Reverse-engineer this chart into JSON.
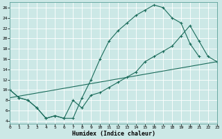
{
  "title": "",
  "xlabel": "Humidex (Indice chaleur)",
  "bg_color": "#cce8e6",
  "grid_color": "#b0d8d5",
  "line_color": "#1a6b5a",
  "xlim": [
    0,
    23
  ],
  "ylim": [
    3.5,
    27
  ],
  "yticks": [
    4,
    6,
    8,
    10,
    12,
    14,
    16,
    18,
    20,
    22,
    24,
    26
  ],
  "xticks": [
    0,
    1,
    2,
    3,
    4,
    5,
    6,
    7,
    8,
    9,
    10,
    11,
    12,
    13,
    14,
    15,
    16,
    17,
    18,
    19,
    20,
    21,
    22,
    23
  ],
  "curve1_x": [
    0,
    1,
    2,
    3,
    4,
    5,
    6,
    7,
    8,
    9,
    10,
    11,
    12,
    13,
    14,
    15,
    16,
    17,
    18,
    19,
    20,
    21
  ],
  "curve1_y": [
    10,
    8.5,
    8,
    6.5,
    4.5,
    5,
    4.5,
    4.5,
    8.5,
    12,
    16,
    19.5,
    21.5,
    23,
    24.5,
    25.5,
    26.5,
    26,
    24,
    23,
    19,
    16.5
  ],
  "curve2_x": [
    0,
    1,
    2,
    3,
    4,
    5,
    6,
    7,
    8,
    9,
    10,
    11,
    12,
    13,
    14,
    15,
    16,
    17,
    18,
    19,
    20,
    21,
    22,
    23
  ],
  "curve2_y": [
    10,
    8.5,
    8,
    6.5,
    4.5,
    5,
    4.5,
    8.0,
    6.5,
    9,
    9.5,
    10.5,
    11.5,
    12.5,
    13.5,
    15.5,
    16.5,
    17.5,
    18.5,
    20.5,
    22.5,
    19.5,
    16.5,
    15.5
  ],
  "curve3_x": [
    0,
    23
  ],
  "curve3_y": [
    8.5,
    15.5
  ]
}
